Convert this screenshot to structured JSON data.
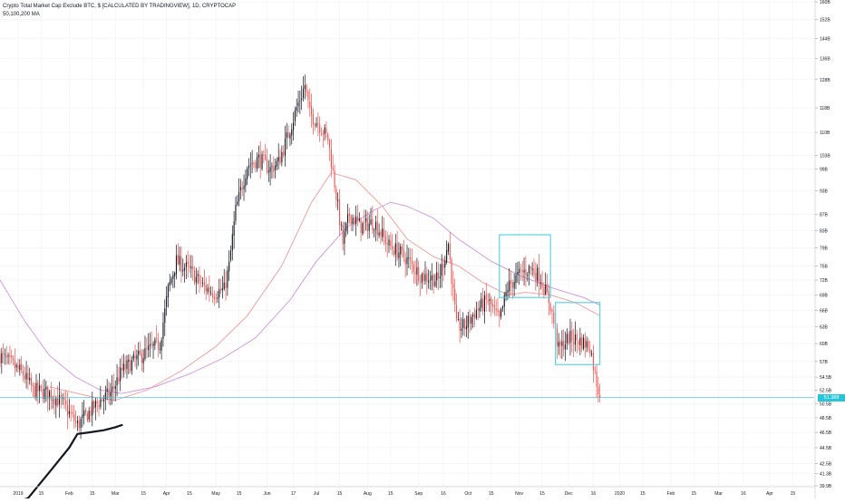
{
  "legend": {
    "title": "Crypto Total Market Cap Exclude BTC, $ [CALCULATED BY TRADINGVIEW], 1D, CRYPTOCAP",
    "indicator": "50,100,200 MA"
  },
  "last_price_label": "51.388",
  "colors": {
    "up": "#131722",
    "down": "#ef5350",
    "ma_short": "#ef9a9a",
    "ma_long": "#ce93d8",
    "highlight_box": "#4dd0e1",
    "last_price": "#26c6da",
    "grid": "#eef0f4",
    "ink": "#131722"
  },
  "chart_data": {
    "type": "candlestick",
    "title": "Crypto Total Market Cap Exclude BTC, $ [CALCULATED BY TRADINGVIEW], 1D, CRYPTOCAP",
    "price_scale": {
      "type": "log",
      "ticks": [
        "160B",
        "152B",
        "144B",
        "136B",
        "128B",
        "118B",
        "110B",
        "103B",
        "99B",
        "93B",
        "87B",
        "83B",
        "79B",
        "75B",
        "72B",
        "69B",
        "66B",
        "63B",
        "60B",
        "57B",
        "54.5B",
        "52.5B",
        "50.5B",
        "48.5B",
        "46.5B",
        "44.5B",
        "42.5B",
        "41.3B",
        "39.9B"
      ],
      "tick_values": [
        160,
        152,
        144,
        136,
        128,
        118,
        110,
        103,
        99,
        93,
        87,
        83,
        79,
        75,
        72,
        69,
        66,
        63,
        60,
        57,
        54.5,
        52.5,
        50.5,
        48.5,
        46.5,
        44.5,
        42.5,
        41.3,
        39.9
      ],
      "range": [
        39.9,
        160
      ]
    },
    "time_axis": {
      "ticks": [
        "2019",
        "15",
        "Feb",
        "15",
        "Mar",
        "15",
        "Apr",
        "15",
        "May",
        "15",
        "Jun",
        "17",
        "Jul",
        "15",
        "Aug",
        "15",
        "Sep",
        "16",
        "Oct",
        "15",
        "Nov",
        "15",
        "Dec",
        "16",
        "2020",
        "15",
        "Feb",
        "15",
        "Mar",
        "16",
        "Apr",
        "15"
      ],
      "tick_dates": [
        "2019-01-01",
        "2019-01-15",
        "2019-02-01",
        "2019-02-15",
        "2019-03-01",
        "2019-03-18",
        "2019-04-01",
        "2019-04-15",
        "2019-05-01",
        "2019-05-15",
        "2019-06-01",
        "2019-06-17",
        "2019-07-01",
        "2019-07-15",
        "2019-08-01",
        "2019-08-15",
        "2019-09-01",
        "2019-09-16",
        "2019-10-01",
        "2019-10-15",
        "2019-11-01",
        "2019-11-15",
        "2019-12-01",
        "2019-12-16",
        "2020-01-01",
        "2020-01-15",
        "2020-02-01",
        "2020-02-15",
        "2020-03-01",
        "2020-03-16",
        "2020-04-01",
        "2020-04-15"
      ],
      "range": [
        "2018-12-21",
        "2020-04-28"
      ]
    },
    "price_path": [
      [
        "2018-12-21",
        58.0
      ],
      [
        "2018-12-28",
        56.5
      ],
      [
        "2019-01-04",
        55.0
      ],
      [
        "2019-01-10",
        52.5
      ],
      [
        "2019-01-20",
        52.0
      ],
      [
        "2019-01-28",
        50.5
      ],
      [
        "2019-02-06",
        47.5
      ],
      [
        "2019-02-12",
        49.0
      ],
      [
        "2019-02-20",
        51.0
      ],
      [
        "2019-02-26",
        52.0
      ],
      [
        "2019-03-05",
        55.5
      ],
      [
        "2019-03-12",
        57.0
      ],
      [
        "2019-03-22",
        59.0
      ],
      [
        "2019-03-28",
        60.0
      ],
      [
        "2019-04-02",
        70.0
      ],
      [
        "2019-04-07",
        76.0
      ],
      [
        "2019-04-15",
        74.0
      ],
      [
        "2019-04-24",
        70.5
      ],
      [
        "2019-04-30",
        69.5
      ],
      [
        "2019-05-06",
        70.0
      ],
      [
        "2019-05-09",
        75.0
      ],
      [
        "2019-05-13",
        88.0
      ],
      [
        "2019-05-20",
        100.0
      ],
      [
        "2019-05-27",
        102.0
      ],
      [
        "2019-06-03",
        99.0
      ],
      [
        "2019-06-08",
        101.0
      ],
      [
        "2019-06-13",
        108.0
      ],
      [
        "2019-06-19",
        118.0
      ],
      [
        "2019-06-24",
        126.0
      ],
      [
        "2019-06-27",
        116.0
      ],
      [
        "2019-07-02",
        113.0
      ],
      [
        "2019-07-08",
        108.0
      ],
      [
        "2019-07-12",
        95.0
      ],
      [
        "2019-07-17",
        80.0
      ],
      [
        "2019-07-21",
        87.0
      ],
      [
        "2019-07-28",
        84.0
      ],
      [
        "2019-08-05",
        85.0
      ],
      [
        "2019-08-14",
        79.5
      ],
      [
        "2019-08-20",
        78.0
      ],
      [
        "2019-08-26",
        76.0
      ],
      [
        "2019-09-02",
        73.0
      ],
      [
        "2019-09-08",
        72.5
      ],
      [
        "2019-09-13",
        72.0
      ],
      [
        "2019-09-19",
        80.0
      ],
      [
        "2019-09-24",
        63.0
      ],
      [
        "2019-09-29",
        63.0
      ],
      [
        "2019-10-06",
        66.0
      ],
      [
        "2019-10-13",
        68.0
      ],
      [
        "2019-10-20",
        64.0
      ],
      [
        "2019-10-25",
        70.5
      ],
      [
        "2019-11-02",
        73.5
      ],
      [
        "2019-11-08",
        74.5
      ],
      [
        "2019-11-14",
        72.5
      ],
      [
        "2019-11-20",
        67.0
      ],
      [
        "2019-11-25",
        59.0
      ],
      [
        "2019-12-01",
        61.0
      ],
      [
        "2019-12-08",
        60.5
      ],
      [
        "2019-12-14",
        59.5
      ],
      [
        "2019-12-17",
        55.0
      ],
      [
        "2019-12-20",
        51.4
      ]
    ],
    "series": [
      {
        "name": "50",
        "points": [
          [
            "2019-01-20",
            53.0
          ],
          [
            "2019-02-15",
            51.5
          ],
          [
            "2019-03-01",
            51.0
          ],
          [
            "2019-03-20",
            52.5
          ],
          [
            "2019-04-10",
            55.5
          ],
          [
            "2019-05-01",
            59.5
          ],
          [
            "2019-05-20",
            65.0
          ],
          [
            "2019-06-10",
            75.0
          ],
          [
            "2019-06-28",
            90.0
          ],
          [
            "2019-07-10",
            98.0
          ],
          [
            "2019-07-25",
            96.0
          ],
          [
            "2019-08-10",
            89.0
          ],
          [
            "2019-08-25",
            81.0
          ],
          [
            "2019-09-10",
            77.0
          ],
          [
            "2019-09-25",
            75.0
          ],
          [
            "2019-10-10",
            71.5
          ],
          [
            "2019-10-25",
            69.0
          ],
          [
            "2019-11-05",
            69.5
          ],
          [
            "2019-11-20",
            69.0
          ],
          [
            "2019-12-05",
            67.5
          ],
          [
            "2019-12-20",
            65.0
          ]
        ]
      },
      {
        "name": "100",
        "points": [
          [
            "2018-12-21",
            72.0
          ],
          [
            "2019-01-05",
            64.0
          ],
          [
            "2019-01-20",
            58.0
          ],
          [
            "2019-02-05",
            54.5
          ],
          [
            "2019-02-20",
            52.5
          ],
          [
            "2019-03-05",
            52.0
          ],
          [
            "2019-03-25",
            53.0
          ],
          [
            "2019-04-15",
            55.0
          ],
          [
            "2019-05-05",
            57.5
          ],
          [
            "2019-05-25",
            61.0
          ],
          [
            "2019-06-15",
            68.0
          ],
          [
            "2019-07-01",
            76.0
          ],
          [
            "2019-07-20",
            84.0
          ],
          [
            "2019-08-05",
            88.0
          ],
          [
            "2019-08-15",
            90.0
          ],
          [
            "2019-08-25",
            89.0
          ],
          [
            "2019-09-10",
            86.0
          ],
          [
            "2019-09-25",
            81.0
          ],
          [
            "2019-10-15",
            76.0
          ],
          [
            "2019-11-01",
            73.0
          ],
          [
            "2019-11-20",
            70.5
          ],
          [
            "2019-12-10",
            68.5
          ],
          [
            "2019-12-20",
            67.0
          ]
        ]
      }
    ],
    "last_value": 51.388,
    "highlight_boxes": [
      {
        "from": "2019-10-20",
        "to": "2019-11-20",
        "low": 68.5,
        "high": 82.0
      },
      {
        "from": "2019-11-23",
        "to": "2019-12-20",
        "low": 56.5,
        "high": 67.5
      }
    ],
    "annotation_path": [
      [
        "2018-12-21",
        37.5
      ],
      [
        "2019-01-07",
        38.5
      ],
      [
        "2019-01-20",
        41.5
      ],
      [
        "2019-02-01",
        44.5
      ],
      [
        "2019-02-06",
        46.3
      ],
      [
        "2019-02-13",
        46.5
      ],
      [
        "2019-02-22",
        46.8
      ],
      [
        "2019-03-01",
        47.2
      ],
      [
        "2019-03-05",
        47.5
      ]
    ]
  }
}
